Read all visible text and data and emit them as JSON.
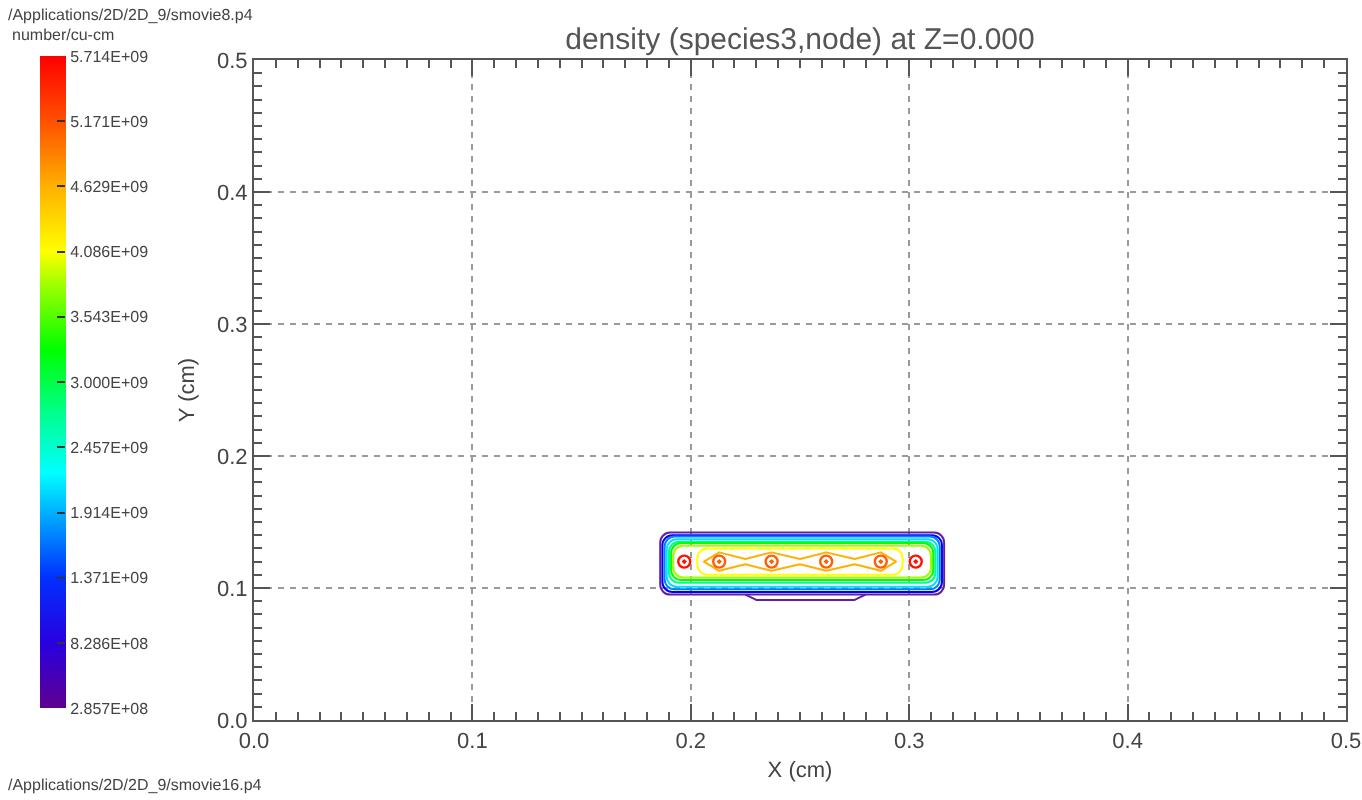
{
  "chart_data": {
    "type": "scatter",
    "title": "density (species3,node) at Z=0.000",
    "xlabel": "X (cm)",
    "ylabel": "Y (cm)",
    "clabel": "number/cu-cm",
    "annotations": [
      "/Applications/2D/2D_9/smovie8.p4",
      "/Applications/2D/2D_9/smovie16.p4"
    ],
    "x": [
      0.197,
      0.213,
      0.237,
      0.262,
      0.287,
      0.303
    ],
    "values": [
      0.12,
      0.12,
      0.12,
      0.12,
      0.12,
      0.12
    ],
    "cvalues": [
      5600000000,
      5100000000,
      5100000000,
      5100000000,
      5100000000,
      5600000000
    ],
    "marker": "circle",
    "xlim": [
      0,
      0.5
    ],
    "ylim": [
      0,
      0.5
    ],
    "xticks": [
      {
        "value": 0,
        "label": "0.0"
      },
      {
        "value": 0.01,
        "label": null
      },
      {
        "value": 0.02,
        "label": null
      },
      {
        "value": 0.03,
        "label": null
      },
      {
        "value": 0.04,
        "label": null
      },
      {
        "value": 0.05,
        "label": null
      },
      {
        "value": 0.06,
        "label": null
      },
      {
        "value": 0.07,
        "label": null
      },
      {
        "value": 0.08,
        "label": null
      },
      {
        "value": 0.09,
        "label": null
      },
      {
        "value": 0.1,
        "label": "0.1"
      },
      {
        "value": 0.11,
        "label": null
      },
      {
        "value": 0.12,
        "label": null
      },
      {
        "value": 0.13,
        "label": null
      },
      {
        "value": 0.14,
        "label": null
      },
      {
        "value": 0.15,
        "label": null
      },
      {
        "value": 0.16,
        "label": null
      },
      {
        "value": 0.17,
        "label": null
      },
      {
        "value": 0.18,
        "label": null
      },
      {
        "value": 0.19,
        "label": null
      },
      {
        "value": 0.2,
        "label": "0.2"
      },
      {
        "value": 0.21,
        "label": null
      },
      {
        "value": 0.22,
        "label": null
      },
      {
        "value": 0.23,
        "label": null
      },
      {
        "value": 0.24,
        "label": null
      },
      {
        "value": 0.25,
        "label": null
      },
      {
        "value": 0.26,
        "label": null
      },
      {
        "value": 0.27,
        "label": null
      },
      {
        "value": 0.28,
        "label": null
      },
      {
        "value": 0.29,
        "label": null
      },
      {
        "value": 0.3,
        "label": "0.3"
      },
      {
        "value": 0.31,
        "label": null
      },
      {
        "value": 0.32,
        "label": null
      },
      {
        "value": 0.33,
        "label": null
      },
      {
        "value": 0.34,
        "label": null
      },
      {
        "value": 0.35,
        "label": null
      },
      {
        "value": 0.36,
        "label": null
      },
      {
        "value": 0.37,
        "label": null
      },
      {
        "value": 0.38,
        "label": null
      },
      {
        "value": 0.39,
        "label": null
      },
      {
        "value": 0.4,
        "label": "0.4"
      },
      {
        "value": 0.41,
        "label": null
      },
      {
        "value": 0.42,
        "label": null
      },
      {
        "value": 0.43,
        "label": null
      },
      {
        "value": 0.44,
        "label": null
      },
      {
        "value": 0.45,
        "label": null
      },
      {
        "value": 0.46,
        "label": null
      },
      {
        "value": 0.47,
        "label": null
      },
      {
        "value": 0.48,
        "label": null
      },
      {
        "value": 0.49,
        "label": null
      },
      {
        "value": 0.5,
        "label": "0.5"
      }
    ],
    "yticks": [
      {
        "value": 0,
        "label": "0.0"
      },
      {
        "value": 0.01,
        "label": null
      },
      {
        "value": 0.02,
        "label": null
      },
      {
        "value": 0.03,
        "label": null
      },
      {
        "value": 0.04,
        "label": null
      },
      {
        "value": 0.05,
        "label": null
      },
      {
        "value": 0.06,
        "label": null
      },
      {
        "value": 0.07,
        "label": null
      },
      {
        "value": 0.08,
        "label": null
      },
      {
        "value": 0.09,
        "label": null
      },
      {
        "value": 0.1,
        "label": "0.1"
      },
      {
        "value": 0.11,
        "label": null
      },
      {
        "value": 0.12,
        "label": null
      },
      {
        "value": 0.13,
        "label": null
      },
      {
        "value": 0.14,
        "label": null
      },
      {
        "value": 0.15,
        "label": null
      },
      {
        "value": 0.16,
        "label": null
      },
      {
        "value": 0.17,
        "label": null
      },
      {
        "value": 0.18,
        "label": null
      },
      {
        "value": 0.19,
        "label": null
      },
      {
        "value": 0.2,
        "label": "0.2"
      },
      {
        "value": 0.21,
        "label": null
      },
      {
        "value": 0.22,
        "label": null
      },
      {
        "value": 0.23,
        "label": null
      },
      {
        "value": 0.24,
        "label": null
      },
      {
        "value": 0.25,
        "label": null
      },
      {
        "value": 0.26,
        "label": null
      },
      {
        "value": 0.27,
        "label": null
      },
      {
        "value": 0.28,
        "label": null
      },
      {
        "value": 0.29,
        "label": null
      },
      {
        "value": 0.3,
        "label": "0.3"
      },
      {
        "value": 0.31,
        "label": null
      },
      {
        "value": 0.32,
        "label": null
      },
      {
        "value": 0.33,
        "label": null
      },
      {
        "value": 0.34,
        "label": null
      },
      {
        "value": 0.35,
        "label": null
      },
      {
        "value": 0.36,
        "label": null
      },
      {
        "value": 0.37,
        "label": null
      },
      {
        "value": 0.38,
        "label": null
      },
      {
        "value": 0.39,
        "label": null
      },
      {
        "value": 0.4,
        "label": "0.4"
      },
      {
        "value": 0.41,
        "label": null
      },
      {
        "value": 0.42,
        "label": null
      },
      {
        "value": 0.43,
        "label": null
      },
      {
        "value": 0.44,
        "label": null
      },
      {
        "value": 0.45,
        "label": null
      },
      {
        "value": 0.46,
        "label": null
      },
      {
        "value": 0.47,
        "label": null
      },
      {
        "value": 0.48,
        "label": null
      },
      {
        "value": 0.49,
        "label": null
      },
      {
        "value": 0.5,
        "label": "0.5"
      }
    ],
    "grid": true,
    "clim": [
      285700000,
      5714000000
    ],
    "cticks": [
      {
        "value": 285700000,
        "label": "2.857E+08"
      },
      {
        "value": 828600000,
        "label": "8.286E+08"
      },
      {
        "value": 1371000000,
        "label": "1.371E+09"
      },
      {
        "value": 1914000000,
        "label": "1.914E+09"
      },
      {
        "value": 2457000000,
        "label": "2.457E+09"
      },
      {
        "value": 3000000000,
        "label": "3.000E+09"
      },
      {
        "value": 3543000000,
        "label": "3.543E+09"
      },
      {
        "value": 4086000000,
        "label": "4.086E+09"
      },
      {
        "value": 4629000000,
        "label": "4.629E+09"
      },
      {
        "value": 5171000000,
        "label": "5.171E+09"
      },
      {
        "value": 5714000000,
        "label": "5.714E+09"
      }
    ]
  }
}
